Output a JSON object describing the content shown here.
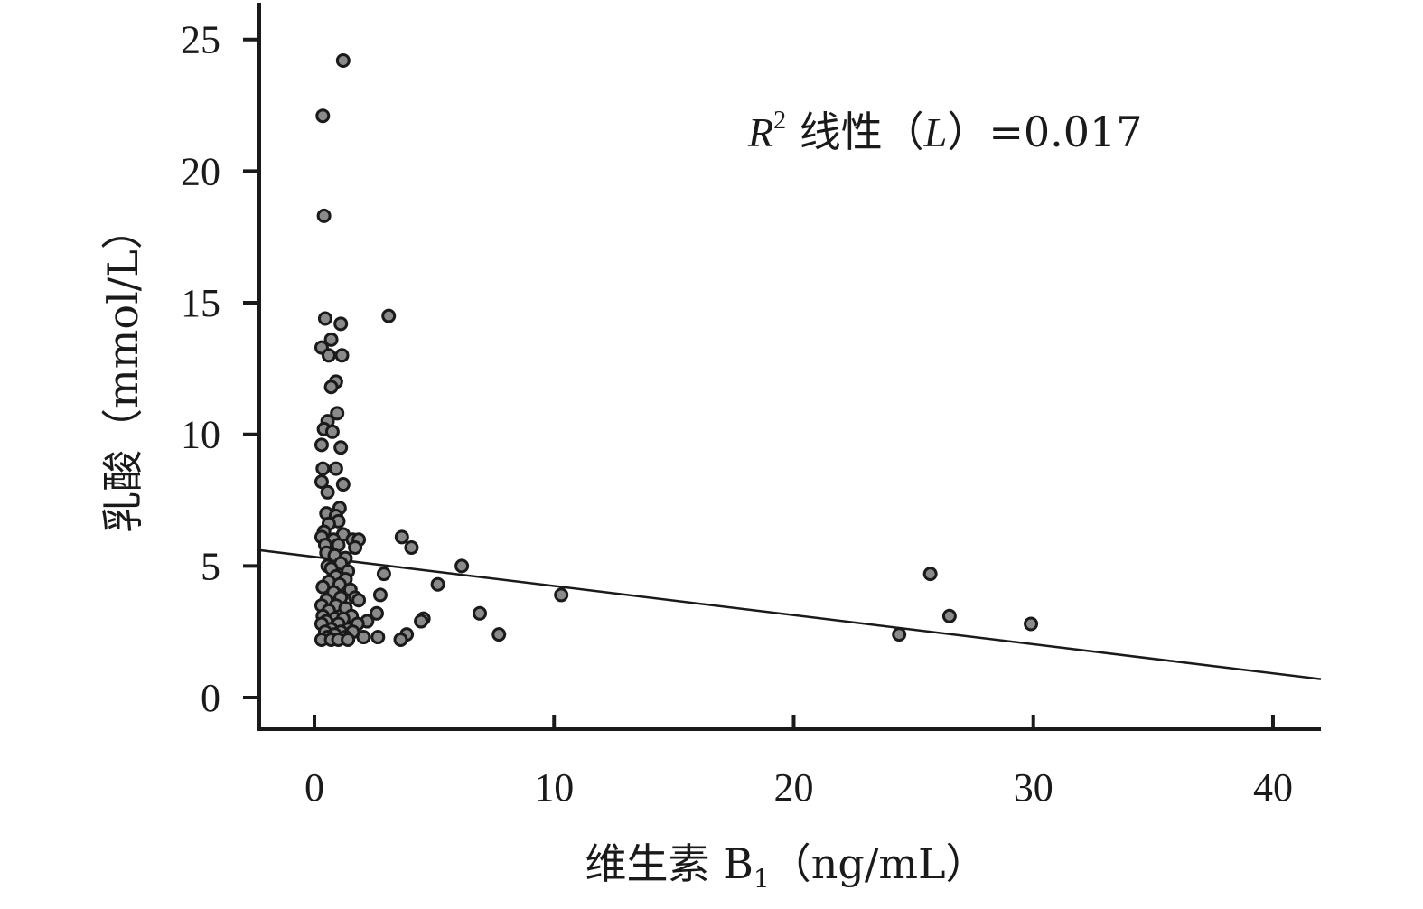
{
  "chart_data": {
    "type": "scatter",
    "xlabel_prefix": "维生素 B",
    "xlabel_sub": "1",
    "xlabel_suffix": "（ng/mL）",
    "ylabel": "乳酸（mmol/L）",
    "xlim": [
      -2.3,
      42
    ],
    "ylim": [
      -1.2,
      26.5
    ],
    "xticks": [
      0,
      10,
      20,
      30,
      40
    ],
    "yticks": [
      0,
      5,
      10,
      15,
      20,
      25
    ],
    "grid": false,
    "annotation": {
      "r": "R",
      "sup": "2",
      "text": " 线性（",
      "l": "L",
      "value": "）=0.017"
    },
    "fit_line": {
      "x": [
        -2.3,
        42
      ],
      "y": [
        5.6,
        0.7
      ]
    },
    "points": [
      [
        1.2,
        24.2
      ],
      [
        0.35,
        22.1
      ],
      [
        0.4,
        18.3
      ],
      [
        3.1,
        14.5
      ],
      [
        0.45,
        14.4
      ],
      [
        1.1,
        14.2
      ],
      [
        0.3,
        13.3
      ],
      [
        0.7,
        13.6
      ],
      [
        0.6,
        13.0
      ],
      [
        1.15,
        13.0
      ],
      [
        0.9,
        12.0
      ],
      [
        0.7,
        11.8
      ],
      [
        0.95,
        10.8
      ],
      [
        0.55,
        10.5
      ],
      [
        0.4,
        10.2
      ],
      [
        0.75,
        10.1
      ],
      [
        0.3,
        9.6
      ],
      [
        1.1,
        9.5
      ],
      [
        0.35,
        8.7
      ],
      [
        0.9,
        8.7
      ],
      [
        0.3,
        8.2
      ],
      [
        1.2,
        8.1
      ],
      [
        0.55,
        7.8
      ],
      [
        1.05,
        7.2
      ],
      [
        0.5,
        7.0
      ],
      [
        0.9,
        6.9
      ],
      [
        1.0,
        6.7
      ],
      [
        0.6,
        6.6
      ],
      [
        0.4,
        6.3
      ],
      [
        1.2,
        6.2
      ],
      [
        0.3,
        6.1
      ],
      [
        0.8,
        6.0
      ],
      [
        1.6,
        6.0
      ],
      [
        1.85,
        6.0
      ],
      [
        3.65,
        6.1
      ],
      [
        0.45,
        5.8
      ],
      [
        1.0,
        5.8
      ],
      [
        1.7,
        5.7
      ],
      [
        4.05,
        5.7
      ],
      [
        0.5,
        5.5
      ],
      [
        0.85,
        5.4
      ],
      [
        1.3,
        5.3
      ],
      [
        1.1,
        5.1
      ],
      [
        6.15,
        5.0
      ],
      [
        0.55,
        5.0
      ],
      [
        0.7,
        4.9
      ],
      [
        1.4,
        4.8
      ],
      [
        2.9,
        4.7
      ],
      [
        0.9,
        4.6
      ],
      [
        1.3,
        4.5
      ],
      [
        0.6,
        4.4
      ],
      [
        1.05,
        4.3
      ],
      [
        5.15,
        4.3
      ],
      [
        0.35,
        4.2
      ],
      [
        1.5,
        4.1
      ],
      [
        0.8,
        4.0
      ],
      [
        10.3,
        3.9
      ],
      [
        2.75,
        3.9
      ],
      [
        1.1,
        3.8
      ],
      [
        1.7,
        3.8
      ],
      [
        0.5,
        3.7
      ],
      [
        1.85,
        3.7
      ],
      [
        0.3,
        3.5
      ],
      [
        0.9,
        3.5
      ],
      [
        1.3,
        3.4
      ],
      [
        0.6,
        3.3
      ],
      [
        6.9,
        3.2
      ],
      [
        2.6,
        3.2
      ],
      [
        1.55,
        3.1
      ],
      [
        0.35,
        3.1
      ],
      [
        0.85,
        3.0
      ],
      [
        1.2,
        3.0
      ],
      [
        4.55,
        3.0
      ],
      [
        4.45,
        2.9
      ],
      [
        2.2,
        2.9
      ],
      [
        0.5,
        2.9
      ],
      [
        1.0,
        2.8
      ],
      [
        1.8,
        2.8
      ],
      [
        0.3,
        2.8
      ],
      [
        0.7,
        2.6
      ],
      [
        1.4,
        2.6
      ],
      [
        0.45,
        2.5
      ],
      [
        1.1,
        2.5
      ],
      [
        1.6,
        2.5
      ],
      [
        7.7,
        2.4
      ],
      [
        3.85,
        2.4
      ],
      [
        0.85,
        2.4
      ],
      [
        0.55,
        2.3
      ],
      [
        1.3,
        2.3
      ],
      [
        2.05,
        2.3
      ],
      [
        2.65,
        2.3
      ],
      [
        3.6,
        2.2
      ],
      [
        0.3,
        2.2
      ],
      [
        0.7,
        2.2
      ],
      [
        1.0,
        2.2
      ],
      [
        1.4,
        2.2
      ],
      [
        24.4,
        2.4
      ],
      [
        25.7,
        4.7
      ],
      [
        26.5,
        3.1
      ],
      [
        29.9,
        2.8
      ]
    ]
  }
}
